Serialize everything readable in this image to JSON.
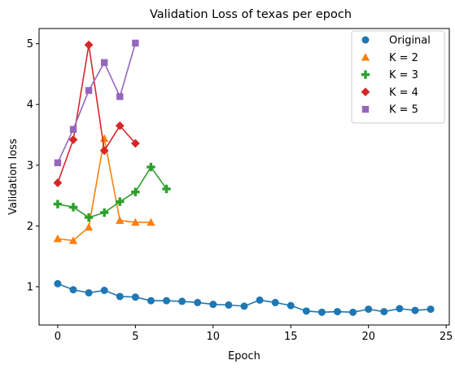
{
  "chart_data": {
    "type": "line",
    "title": "Validation Loss of texas per epoch",
    "xlabel": "Epoch",
    "ylabel": "Validation loss",
    "xlim": [
      -1.2,
      25.2
    ],
    "ylim": [
      0.37,
      5.25
    ],
    "xticks": [
      0,
      5,
      10,
      15,
      20,
      25
    ],
    "yticks": [
      1,
      2,
      3,
      4,
      5
    ],
    "grid": false,
    "legend_position": "top-right",
    "series": [
      {
        "name": "Original",
        "color": "#1f77b4",
        "marker": "circle",
        "x": [
          0,
          1,
          2,
          3,
          4,
          5,
          6,
          7,
          8,
          9,
          10,
          11,
          12,
          13,
          14,
          15,
          16,
          17,
          18,
          19,
          20,
          21,
          22,
          23,
          24
        ],
        "y": [
          1.05,
          0.95,
          0.9,
          0.94,
          0.84,
          0.83,
          0.77,
          0.77,
          0.76,
          0.74,
          0.71,
          0.7,
          0.68,
          0.78,
          0.74,
          0.69,
          0.6,
          0.58,
          0.59,
          0.58,
          0.63,
          0.59,
          0.64,
          0.61,
          0.63
        ]
      },
      {
        "name": "K = 2",
        "color": "#ff7f0e",
        "marker": "triangle",
        "x": [
          0,
          1,
          2,
          3,
          4,
          5,
          6
        ],
        "y": [
          1.79,
          1.76,
          1.98,
          3.44,
          2.09,
          2.06,
          2.06
        ]
      },
      {
        "name": "K = 3",
        "color": "#2ca02c",
        "marker": "plus",
        "x": [
          0,
          1,
          2,
          3,
          4,
          5,
          6,
          7
        ],
        "y": [
          2.36,
          2.31,
          2.14,
          2.22,
          2.4,
          2.56,
          2.97,
          2.61
        ]
      },
      {
        "name": "K = 4",
        "color": "#d62728",
        "marker": "diamond",
        "x": [
          0,
          1,
          2,
          3,
          4,
          5
        ],
        "y": [
          2.71,
          3.42,
          4.98,
          3.24,
          3.65,
          3.36
        ]
      },
      {
        "name": "K = 5",
        "color": "#9467bd",
        "marker": "square",
        "x": [
          0,
          1,
          2,
          3,
          4,
          5
        ],
        "y": [
          3.04,
          3.59,
          4.23,
          4.69,
          4.13,
          5.01
        ]
      }
    ]
  }
}
